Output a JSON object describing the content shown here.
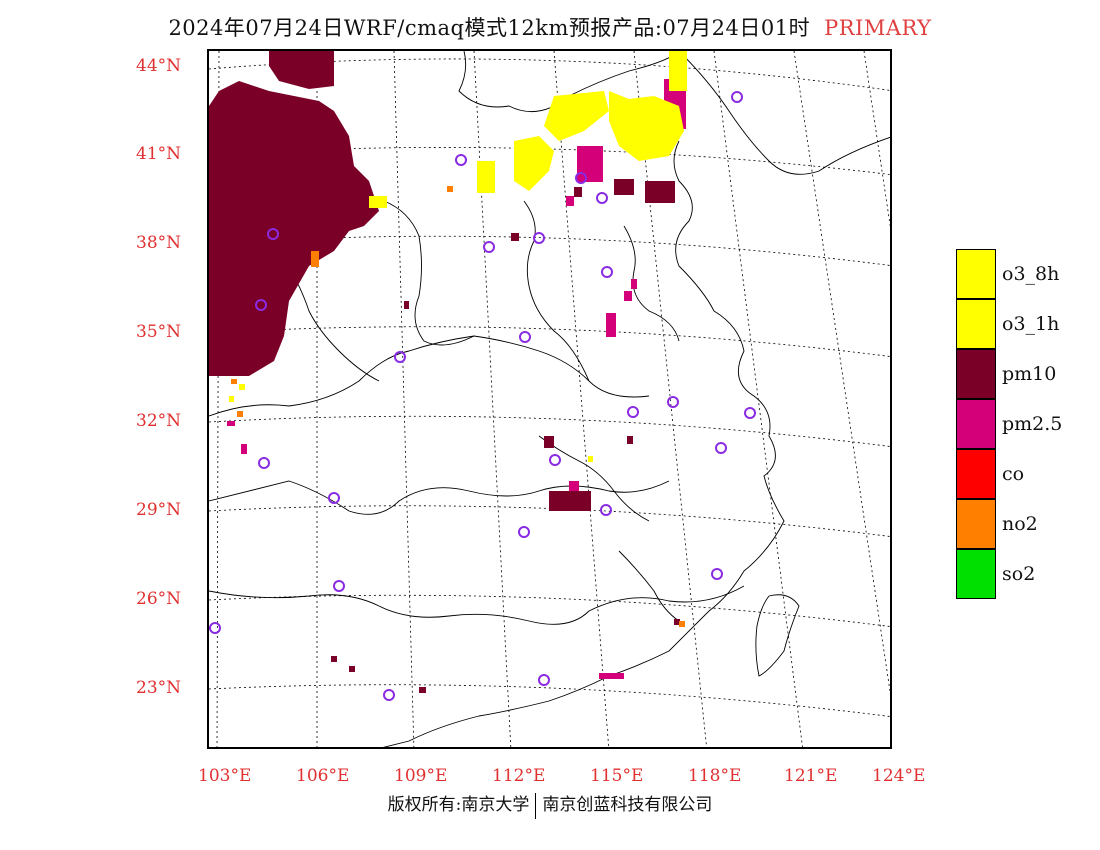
{
  "header": {
    "title": "2024年07月24日WRF/cmaq模式12km预报产品:07月24日01时",
    "tag": "PRIMARY"
  },
  "axes": {
    "latitudes": [
      "44°N",
      "41°N",
      "38°N",
      "35°N",
      "32°N",
      "29°N",
      "26°N",
      "23°N"
    ],
    "longitudes": [
      "103°E",
      "106°E",
      "109°E",
      "112°E",
      "115°E",
      "118°E",
      "121°E",
      "124°E"
    ]
  },
  "legend": [
    {
      "label": "o3_8h",
      "color": "#ffff00"
    },
    {
      "label": "o3_1h",
      "color": "#ffff00"
    },
    {
      "label": "pm10",
      "color": "#7a0028"
    },
    {
      "label": "pm2.5",
      "color": "#d4007a"
    },
    {
      "label": "co",
      "color": "#ff0000"
    },
    {
      "label": "no2",
      "color": "#ff8000"
    },
    {
      "label": "so2",
      "color": "#00e000"
    }
  ],
  "footer": {
    "left": "版权所有:南京大学",
    "right": "南京创蓝科技有限公司"
  },
  "colors": {
    "pm10": "#7a0028",
    "pm25": "#d4007a",
    "o3": "#ffff00",
    "no2": "#ff8000",
    "label": "#e03030",
    "site_marker": "#8a2be2"
  }
}
